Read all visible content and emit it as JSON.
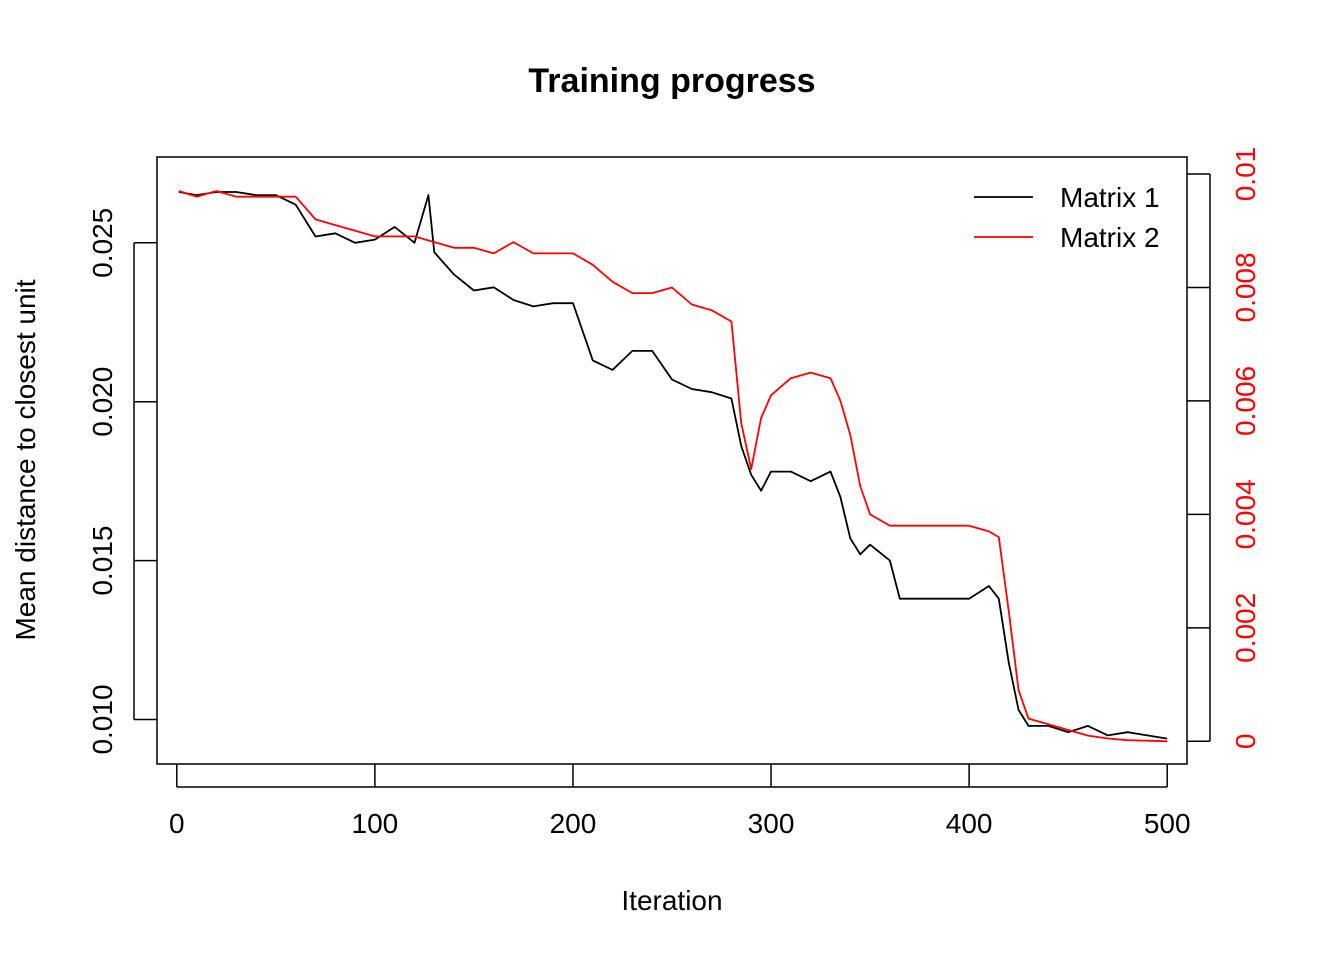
{
  "chart_data": {
    "type": "line",
    "title": "Training progress",
    "xlabel": "Iteration",
    "ylabel": "Mean distance to closest unit",
    "xlim": [
      -10,
      510
    ],
    "x_ticks": [
      0,
      100,
      200,
      300,
      400,
      500
    ],
    "x_tick_labels": [
      "0",
      "100",
      "200",
      "300",
      "400",
      "500"
    ],
    "y_left": {
      "lim": [
        0.0086,
        0.0277
      ],
      "ticks": [
        0.01,
        0.015,
        0.02,
        0.025
      ],
      "tick_labels": [
        "0.010",
        "0.015",
        "0.020",
        "0.025"
      ],
      "color": "#000000"
    },
    "y_right": {
      "lim": [
        -0.0004,
        0.0103
      ],
      "ticks": [
        0,
        0.002,
        0.004,
        0.006,
        0.008,
        0.01
      ],
      "tick_labels": [
        "0",
        "0.002",
        "0.004",
        "0.006",
        "0.008",
        "0.01"
      ],
      "color": "#ff0000"
    },
    "grid": false,
    "legend": {
      "position": "top-right",
      "entries": [
        {
          "label": "Matrix 1",
          "color": "#000000"
        },
        {
          "label": "Matrix 2",
          "color": "#ff0000"
        }
      ]
    },
    "series": [
      {
        "name": "Matrix 1",
        "axis": "left",
        "color": "#000000",
        "x": [
          1,
          10,
          20,
          30,
          40,
          50,
          60,
          70,
          80,
          90,
          100,
          110,
          120,
          127,
          130,
          140,
          150,
          160,
          170,
          180,
          190,
          200,
          210,
          220,
          230,
          240,
          250,
          260,
          270,
          280,
          285,
          290,
          295,
          300,
          310,
          320,
          330,
          335,
          340,
          345,
          350,
          360,
          365,
          370,
          380,
          390,
          400,
          410,
          415,
          420,
          425,
          430,
          440,
          450,
          460,
          470,
          480,
          490,
          500
        ],
        "values": [
          0.0266,
          0.0265,
          0.0266,
          0.0266,
          0.0265,
          0.0265,
          0.0262,
          0.0252,
          0.0253,
          0.025,
          0.0251,
          0.0255,
          0.025,
          0.0265,
          0.0247,
          0.024,
          0.0235,
          0.0236,
          0.0232,
          0.023,
          0.0231,
          0.0231,
          0.0213,
          0.021,
          0.0216,
          0.0216,
          0.0207,
          0.0204,
          0.0203,
          0.0201,
          0.0186,
          0.0177,
          0.0172,
          0.0178,
          0.0178,
          0.0175,
          0.0178,
          0.017,
          0.0157,
          0.0152,
          0.0155,
          0.015,
          0.0138,
          0.0138,
          0.0138,
          0.0138,
          0.0138,
          0.0142,
          0.0138,
          0.0118,
          0.0103,
          0.0098,
          0.0098,
          0.0096,
          0.0098,
          0.0095,
          0.0096,
          0.0095,
          0.0094
        ]
      },
      {
        "name": "Matrix 2",
        "axis": "right",
        "color": "#ff0000",
        "x": [
          1,
          10,
          20,
          30,
          40,
          50,
          60,
          70,
          80,
          90,
          100,
          110,
          120,
          130,
          140,
          150,
          160,
          170,
          180,
          190,
          200,
          210,
          220,
          230,
          240,
          250,
          260,
          270,
          280,
          285,
          290,
          295,
          300,
          310,
          320,
          330,
          335,
          340,
          345,
          350,
          360,
          370,
          380,
          390,
          400,
          410,
          415,
          420,
          425,
          430,
          440,
          450,
          460,
          470,
          480,
          490,
          500
        ],
        "values": [
          0.0097,
          0.0096,
          0.0097,
          0.0096,
          0.0096,
          0.0096,
          0.0096,
          0.0092,
          0.0091,
          0.009,
          0.0089,
          0.0089,
          0.0089,
          0.0088,
          0.0087,
          0.0087,
          0.0086,
          0.0088,
          0.0086,
          0.0086,
          0.0086,
          0.0084,
          0.0081,
          0.0079,
          0.0079,
          0.008,
          0.0077,
          0.0076,
          0.0074,
          0.0056,
          0.0048,
          0.0057,
          0.0061,
          0.0064,
          0.0065,
          0.0064,
          0.006,
          0.0054,
          0.0045,
          0.004,
          0.0038,
          0.0038,
          0.0038,
          0.0038,
          0.0038,
          0.0037,
          0.0036,
          0.0023,
          0.0009,
          0.0004,
          0.0003,
          0.0002,
          0.0001,
          5e-05,
          2e-05,
          1e-05,
          0.0
        ]
      }
    ]
  }
}
